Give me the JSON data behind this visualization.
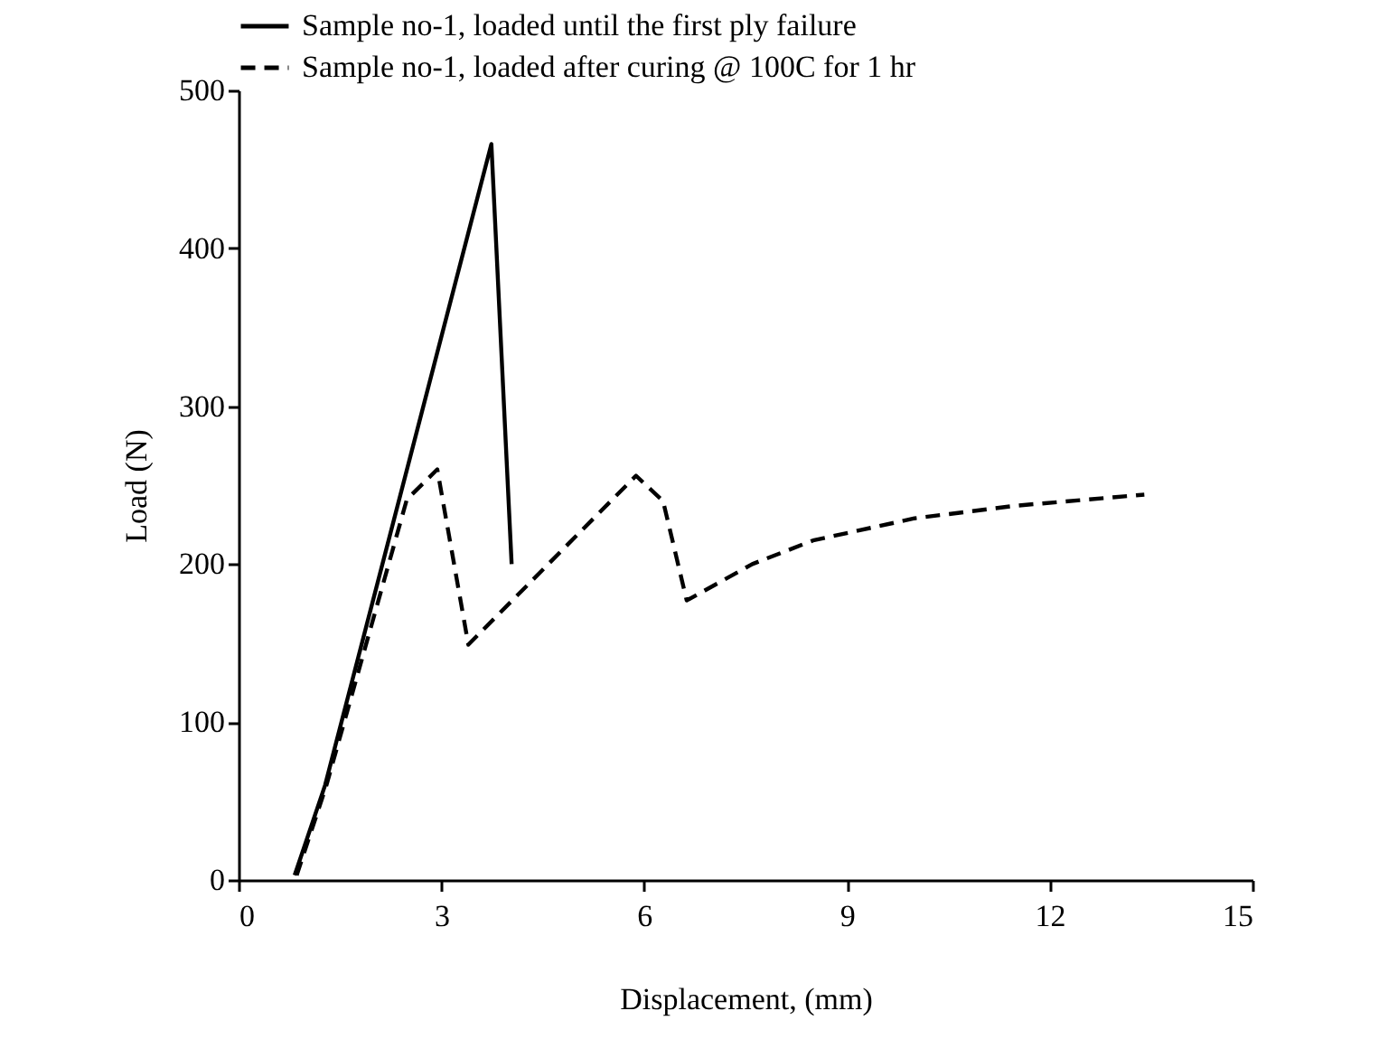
{
  "chart_data": {
    "type": "line",
    "xlabel": "Displacement, (mm)",
    "ylabel": "Load (N)",
    "xlim": [
      0,
      15
    ],
    "xticks": [
      0,
      3,
      6,
      9,
      12,
      15
    ],
    "ylim": [
      0,
      500
    ],
    "yticks": [
      0,
      100,
      200,
      300,
      400,
      500
    ],
    "grid": false,
    "legend": "top",
    "marker": "none",
    "series": [
      {
        "name": "Sample no-1, loaded until the first ply failure",
        "color": "#000000",
        "line_style": "solid",
        "x": [
          0.83,
          1.28,
          3.74,
          4.04
        ],
        "values": [
          3,
          60,
          466,
          200
        ]
      },
      {
        "name": "Sample no-1, loaded after curing @ 100C for 1 hr",
        "color": "#000000",
        "line_style": "dashed",
        "x": [
          0.86,
          1.3,
          2.49,
          2.94,
          3.4,
          5.88,
          6.28,
          6.63,
          7.6,
          8.5,
          10.0,
          11.5,
          13.4
        ],
        "values": [
          3,
          60,
          241,
          260,
          149,
          256,
          240,
          177,
          200,
          215,
          229,
          237,
          244
        ]
      }
    ]
  }
}
